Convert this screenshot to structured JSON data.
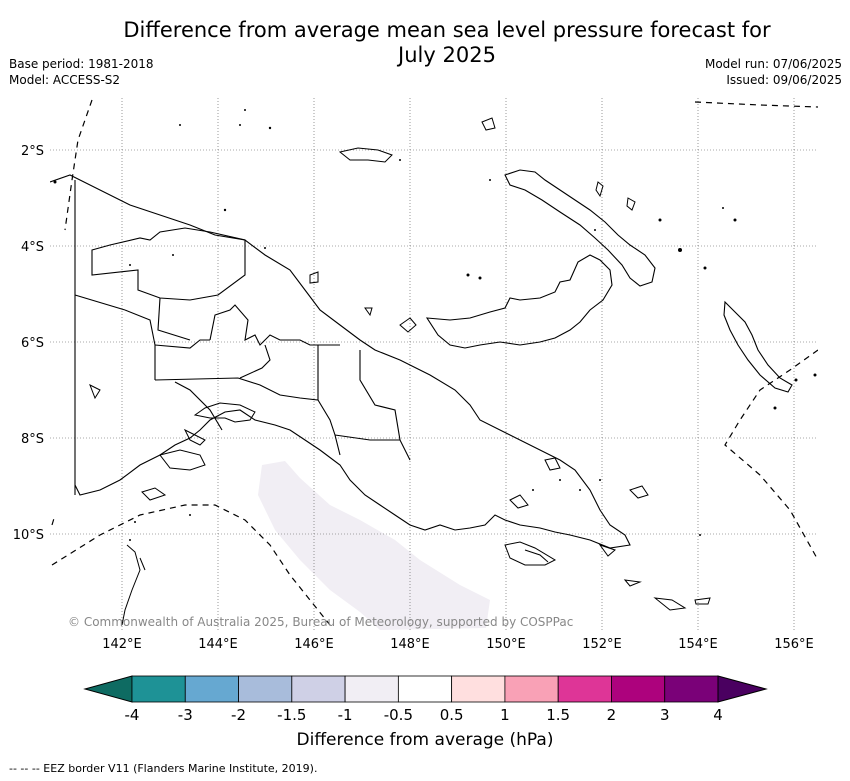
{
  "title_line1": "Difference from average mean sea level pressure forecast for",
  "title_line2": "July 2025",
  "meta_left": [
    "Base period: 1981-2018",
    "Model: ACCESS-S2"
  ],
  "meta_right": [
    "Model run: 07/06/2025",
    "Issued: 09/06/2025"
  ],
  "lat_labels": [
    "2°S",
    "4°S",
    "6°S",
    "8°S",
    "10°S"
  ],
  "lon_labels": [
    "142°E",
    "144°E",
    "146°E",
    "148°E",
    "150°E",
    "152°E",
    "154°E",
    "156°E"
  ],
  "copyright": "© Commonwealth of Australia 2025, Bureau of Meteorology, supported by COSPPac",
  "colorbar": {
    "labels": [
      "-4",
      "-3",
      "-2",
      "-1.5",
      "-1",
      "-0.5",
      "0.5",
      "1",
      "1.5",
      "2",
      "3",
      "4"
    ],
    "colors": [
      "#0e6b62",
      "#1e9296",
      "#66a8d1",
      "#a8bcdb",
      "#cfd0e6",
      "#f1eef4",
      "#ffffff",
      "#ffdfdf",
      "#f9a1b6",
      "#de3597",
      "#ad027d",
      "#7a0178",
      "#4a0060"
    ],
    "title": "Difference from average (hPa)"
  },
  "footer": "--  --  -- EEZ border V11 (Flanders Marine Institute, 2019)."
}
